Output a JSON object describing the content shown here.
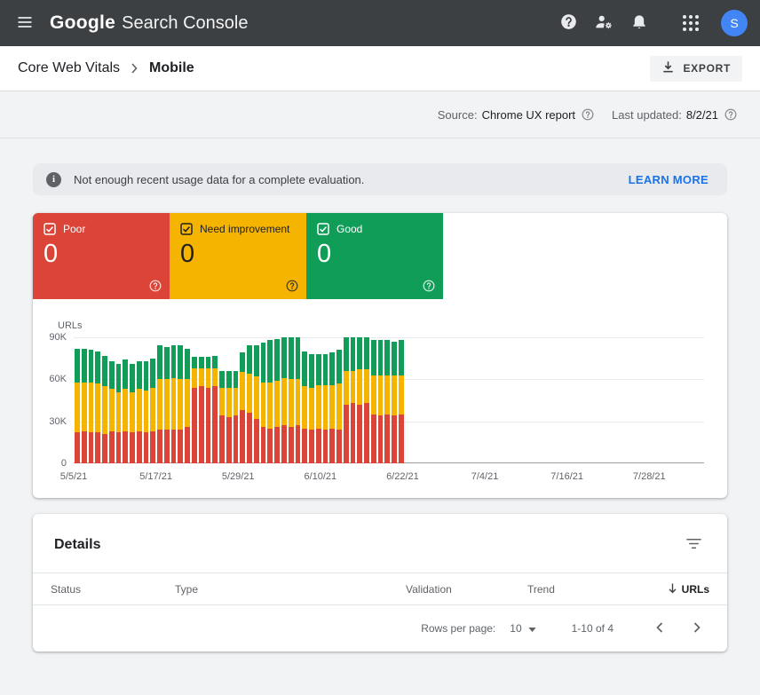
{
  "header": {
    "logo_google": "Google",
    "logo_product": "Search Console",
    "avatar_initial": "S"
  },
  "breadcrumb": {
    "section": "Core Web Vitals",
    "page": "Mobile",
    "export_label": "EXPORT"
  },
  "meta": {
    "source_label": "Source:",
    "source_value": "Chrome UX report",
    "updated_label": "Last updated:",
    "updated_value": "8/2/21"
  },
  "banner": {
    "message": "Not enough recent usage data for a complete evaluation.",
    "action": "LEARN MORE"
  },
  "colors": {
    "header_bg": "#3c4043",
    "accent_blue": "#1a73e8",
    "poor": "#db4437",
    "need_improvement": "#f4b400",
    "good": "#0f9d58",
    "avatar_bg": "#4285f4"
  },
  "tiles": [
    {
      "id": "poor",
      "label": "Poor",
      "value": "0",
      "bg": "#db4437",
      "fg": "#ffffff"
    },
    {
      "id": "need-improvement",
      "label": "Need improvement",
      "value": "0",
      "bg": "#f4b400",
      "fg": "#212121"
    },
    {
      "id": "good",
      "label": "Good",
      "value": "0",
      "bg": "#0f9d58",
      "fg": "#ffffff"
    }
  ],
  "chart_data": {
    "type": "bar",
    "stacked": true,
    "title": "",
    "ylabel": "URLs",
    "units": "thousands",
    "ylim": [
      0,
      90
    ],
    "y_ticks": [
      "90K",
      "60K",
      "30K",
      "0"
    ],
    "x_axis_labels": [
      "5/5/21",
      "5/17/21",
      "5/29/21",
      "6/10/21",
      "6/22/21",
      "7/4/21",
      "7/16/21",
      "7/28/21"
    ],
    "x_tick_interval_days": 12,
    "x_span_days": 92,
    "legend": [
      "poor",
      "need_improvement",
      "good"
    ],
    "series_colors": {
      "poor": "#db4437",
      "need_improvement": "#f4b400",
      "good": "#0f9d58"
    },
    "days_format": [
      "date",
      "poor_K",
      "need_improvement_K",
      "good_K"
    ],
    "days": [
      [
        "5/5/21",
        22,
        36,
        24
      ],
      [
        "5/6/21",
        23,
        35,
        24
      ],
      [
        "5/7/21",
        22,
        36,
        23
      ],
      [
        "5/8/21",
        22,
        35,
        23
      ],
      [
        "5/9/21",
        21,
        34,
        22
      ],
      [
        "5/10/21",
        23,
        30,
        20
      ],
      [
        "5/11/21",
        22,
        29,
        20
      ],
      [
        "5/12/21",
        23,
        30,
        21
      ],
      [
        "5/13/21",
        22,
        29,
        20
      ],
      [
        "5/14/21",
        23,
        30,
        20
      ],
      [
        "5/15/21",
        22,
        30,
        21
      ],
      [
        "5/16/21",
        23,
        31,
        21
      ],
      [
        "5/17/21",
        24,
        36,
        24
      ],
      [
        "5/18/21",
        24,
        36,
        23
      ],
      [
        "5/19/21",
        24,
        37,
        23
      ],
      [
        "5/20/21",
        24,
        36,
        24
      ],
      [
        "5/21/21",
        26,
        34,
        22
      ],
      [
        "5/22/21",
        54,
        14,
        8
      ],
      [
        "5/23/21",
        55,
        13,
        8
      ],
      [
        "5/24/21",
        54,
        14,
        8
      ],
      [
        "5/25/21",
        55,
        13,
        9
      ],
      [
        "5/26/21",
        34,
        20,
        12
      ],
      [
        "5/27/21",
        33,
        21,
        12
      ],
      [
        "5/28/21",
        34,
        20,
        12
      ],
      [
        "5/29/21",
        38,
        27,
        14
      ],
      [
        "5/30/21",
        36,
        28,
        20
      ],
      [
        "5/31/21",
        32,
        30,
        22
      ],
      [
        "6/1/21",
        26,
        32,
        28
      ],
      [
        "6/2/21",
        25,
        33,
        30
      ],
      [
        "6/3/21",
        26,
        33,
        30
      ],
      [
        "6/4/21",
        27,
        34,
        29
      ],
      [
        "6/5/21",
        26,
        34,
        30
      ],
      [
        "6/6/21",
        27,
        33,
        30
      ],
      [
        "6/7/21",
        25,
        30,
        25
      ],
      [
        "6/8/21",
        24,
        30,
        24
      ],
      [
        "6/9/21",
        25,
        31,
        22
      ],
      [
        "6/10/21",
        24,
        32,
        22
      ],
      [
        "6/11/21",
        25,
        31,
        23
      ],
      [
        "6/12/21",
        24,
        33,
        24
      ],
      [
        "6/13/21",
        42,
        24,
        24
      ],
      [
        "6/14/21",
        43,
        23,
        24
      ],
      [
        "6/15/21",
        42,
        25,
        23
      ],
      [
        "6/16/21",
        43,
        24,
        23
      ],
      [
        "6/17/21",
        35,
        28,
        25
      ],
      [
        "6/18/21",
        34,
        29,
        25
      ],
      [
        "6/19/21",
        35,
        28,
        25
      ],
      [
        "6/20/21",
        34,
        29,
        24
      ],
      [
        "6/21/21",
        35,
        28,
        25
      ]
    ]
  },
  "details": {
    "title": "Details",
    "columns": [
      "Status",
      "Type",
      "Validation",
      "Trend",
      "URLs"
    ],
    "pagination": {
      "rows_per_page_label": "Rows per page:",
      "rows_per_page_value": "10",
      "range_text": "1-10 of 4"
    }
  },
  "icons": {
    "menu-icon": "hamburger",
    "help-icon": "filled circle question mark",
    "user-settings-icon": "person with gear",
    "notifications-icon": "bell",
    "apps-grid-icon": "3x3 dots",
    "export-download-icon": "arrow down into tray",
    "breadcrumb-chevron-icon": "›",
    "question-circle-icon": "outlined circle question mark",
    "info-icon": "filled circle i",
    "checkbox-checked-icon": "checked checkbox",
    "filter-icon": "funnel lines",
    "sort-desc-icon": "↓",
    "dropdown-arrow-icon": "▼",
    "chevron-left-icon": "‹",
    "chevron-right-icon": "›"
  }
}
